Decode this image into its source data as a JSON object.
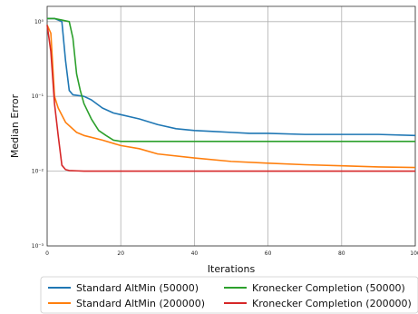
{
  "chart_data": {
    "type": "line",
    "xlabel": "Iterations",
    "ylabel": "Median Error",
    "xlim": [
      0,
      100
    ],
    "ylim": [
      0.001,
      1.6
    ],
    "yscale": "log",
    "grid": true,
    "legend_position": "bottom",
    "x_ticks": [
      0,
      20,
      40,
      60,
      80,
      100
    ],
    "x_tick_labels": [
      "0",
      "20",
      "40",
      "60",
      "80",
      "100"
    ],
    "y_ticks": [
      1,
      0.1,
      0.01,
      0.001
    ],
    "y_tick_labels": [
      "10⁰",
      "10⁻¹",
      "10⁻²",
      "10⁻³"
    ],
    "series": [
      {
        "name": "Standard AltMin (50000)",
        "color": "#1f77b4",
        "x": [
          0,
          2,
          4,
          5,
          6,
          7,
          10,
          12,
          15,
          18,
          20,
          25,
          28,
          30,
          35,
          40,
          45,
          50,
          55,
          60,
          70,
          80,
          90,
          100
        ],
        "y": [
          1.1,
          1.1,
          1.0,
          0.3,
          0.12,
          0.105,
          0.1,
          0.09,
          0.07,
          0.06,
          0.057,
          0.05,
          0.045,
          0.042,
          0.037,
          0.035,
          0.034,
          0.033,
          0.032,
          0.032,
          0.031,
          0.031,
          0.031,
          0.03
        ]
      },
      {
        "name": "Standard AltMin (200000)",
        "color": "#ff7f0e",
        "x": [
          0,
          1,
          2,
          3,
          5,
          8,
          10,
          15,
          20,
          25,
          30,
          40,
          50,
          60,
          70,
          80,
          90,
          100
        ],
        "y": [
          0.9,
          0.7,
          0.1,
          0.07,
          0.045,
          0.033,
          0.03,
          0.026,
          0.022,
          0.02,
          0.017,
          0.015,
          0.0135,
          0.0128,
          0.0122,
          0.0118,
          0.0114,
          0.0112
        ]
      },
      {
        "name": "Kronecker Completion (50000)",
        "color": "#2ca02c",
        "x": [
          0,
          2,
          4,
          6,
          7,
          8,
          9,
          10,
          12,
          14,
          16,
          18,
          20,
          25,
          30,
          40,
          50,
          60,
          70,
          80,
          90,
          100
        ],
        "y": [
          1.1,
          1.1,
          1.05,
          1.0,
          0.6,
          0.2,
          0.12,
          0.08,
          0.05,
          0.035,
          0.03,
          0.026,
          0.025,
          0.025,
          0.025,
          0.025,
          0.025,
          0.025,
          0.025,
          0.025,
          0.025,
          0.025
        ]
      },
      {
        "name": "Kronecker Completion (200000)",
        "color": "#d62728",
        "x": [
          0,
          1,
          2,
          3,
          4,
          5,
          6,
          8,
          10,
          20,
          40,
          60,
          80,
          100
        ],
        "y": [
          0.9,
          0.4,
          0.08,
          0.03,
          0.012,
          0.0105,
          0.0102,
          0.0101,
          0.01,
          0.01,
          0.01,
          0.01,
          0.01,
          0.01
        ]
      }
    ]
  }
}
